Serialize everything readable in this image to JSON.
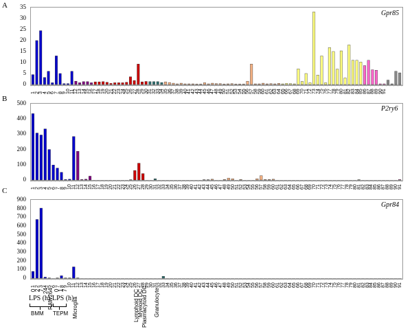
{
  "chart_data": [
    {
      "type": "bar",
      "panel": "A",
      "title": "Gpr85",
      "xlabel": "",
      "ylabel": "",
      "ylim": [
        0,
        35
      ],
      "yticks": [
        0,
        5,
        10,
        15,
        20,
        25,
        30,
        35
      ],
      "grid": false,
      "categories": [
        "1",
        "2",
        "3",
        "4",
        "5",
        "6",
        "7",
        "8",
        "9",
        "10",
        "11",
        "12",
        "13",
        "14",
        "15",
        "16",
        "17",
        "18",
        "19",
        "20",
        "21",
        "22",
        "23",
        "24",
        "25",
        "26",
        "27",
        "28",
        "29",
        "30",
        "31",
        "32",
        "33",
        "34",
        "35",
        "36",
        "37",
        "38",
        "39",
        "40",
        "41",
        "42",
        "43",
        "44",
        "45",
        "46",
        "47",
        "48",
        "49",
        "50",
        "51",
        "52",
        "53",
        "54",
        "55",
        "56",
        "57",
        "58",
        "59",
        "60",
        "61",
        "62",
        "63",
        "64",
        "65",
        "66",
        "67",
        "68",
        "69",
        "70",
        "71",
        "72",
        "73",
        "74",
        "75",
        "76",
        "77",
        "78",
        "79",
        "80",
        "81",
        "82",
        "83",
        "84",
        "85",
        "86",
        "87",
        "88",
        "89",
        "90",
        "91"
      ],
      "values": [
        4.5,
        20,
        24.5,
        3.2,
        6,
        0.8,
        13,
        5,
        0.4,
        0.4,
        6,
        1.5,
        0.8,
        1.3,
        1.3,
        0.8,
        1.2,
        1.2,
        1.3,
        1,
        0.5,
        0.8,
        0.8,
        0.8,
        1,
        3.5,
        1.8,
        9.3,
        1.2,
        1.4,
        1.3,
        1.3,
        1.3,
        0.9,
        1.2,
        0.9,
        0.6,
        0.3,
        0.6,
        0.3,
        0.3,
        0.3,
        0.2,
        0.2,
        0.8,
        0.3,
        0.6,
        0.4,
        0.4,
        0.2,
        0.3,
        0.4,
        0.2,
        0.2,
        0.2,
        1.5,
        9.3,
        0.3,
        0.3,
        0.6,
        0.3,
        0.4,
        0.3,
        0.5,
        0.3,
        0.5,
        0.4,
        0.3,
        7.1,
        1.4,
        5,
        0.8,
        33,
        4.3,
        13,
        0.8,
        16.8,
        15,
        7,
        15.3,
        3,
        18,
        11,
        11,
        10.2,
        8.6,
        11,
        6.7,
        6.5,
        0.3,
        0.3,
        2,
        0.3,
        6,
        5.3
      ]
    },
    {
      "type": "bar",
      "panel": "B",
      "title": "P2ry6",
      "ylim": [
        0,
        500
      ],
      "yticks": [
        0,
        100,
        200,
        300,
        400,
        500
      ],
      "grid": false,
      "categories": [
        "1",
        "2",
        "3",
        "4",
        "5",
        "6",
        "7",
        "8",
        "9",
        "10",
        "11",
        "12",
        "13",
        "14",
        "15",
        "16",
        "17",
        "18",
        "19",
        "20",
        "21",
        "22",
        "23",
        "24",
        "25",
        "26",
        "27",
        "28",
        "29",
        "30",
        "31",
        "32",
        "33",
        "34",
        "35",
        "36",
        "37",
        "38",
        "39",
        "40",
        "41",
        "42",
        "43",
        "44",
        "45",
        "46",
        "47",
        "48",
        "49",
        "50",
        "51",
        "52",
        "53",
        "54",
        "55",
        "56",
        "57",
        "58",
        "59",
        "60",
        "61",
        "62",
        "63",
        "64",
        "65",
        "66",
        "67",
        "68",
        "69",
        "70",
        "71",
        "72",
        "73",
        "74",
        "75",
        "76",
        "77",
        "78",
        "79",
        "80",
        "81",
        "82",
        "83",
        "84",
        "85",
        "86",
        "87",
        "88",
        "89",
        "90",
        "91"
      ],
      "values": [
        435,
        308,
        295,
        335,
        200,
        98,
        78,
        50,
        3,
        5,
        285,
        188,
        3,
        5,
        25,
        0,
        0,
        0,
        0,
        0,
        0,
        0,
        0,
        0,
        2,
        62,
        110,
        42,
        0,
        0,
        8,
        0,
        0,
        0,
        0,
        0,
        0,
        0,
        0,
        0,
        0,
        0,
        2,
        2,
        5,
        0,
        0,
        3,
        12,
        8,
        0,
        3,
        0,
        0,
        0,
        8,
        28,
        3,
        3,
        5,
        0,
        0,
        0,
        0,
        0,
        0,
        0,
        0,
        0,
        0,
        0,
        0,
        0,
        0,
        0,
        0,
        0,
        0,
        0,
        0,
        2,
        0,
        0,
        0,
        0,
        0,
        0,
        0,
        0,
        0,
        3
      ]
    },
    {
      "type": "bar",
      "panel": "C",
      "title": "Gpr84",
      "ylim": [
        0,
        900
      ],
      "yticks": [
        0,
        100,
        200,
        300,
        400,
        500,
        600,
        700,
        800,
        900
      ],
      "grid": false,
      "categories": [
        "1",
        "2",
        "3",
        "4",
        "5",
        "6",
        "7",
        "8",
        "9",
        "10",
        "11",
        "12",
        "13",
        "14",
        "15",
        "16",
        "17",
        "18",
        "19",
        "20",
        "21",
        "22",
        "23",
        "24",
        "25",
        "26",
        "27",
        "28",
        "29",
        "30",
        "31",
        "32",
        "33",
        "34",
        "35",
        "36",
        "37",
        "38",
        "39",
        "40",
        "41",
        "42",
        "43",
        "44",
        "45",
        "46",
        "47",
        "48",
        "49",
        "50",
        "51",
        "52",
        "53",
        "54",
        "55",
        "56",
        "57",
        "58",
        "59",
        "60",
        "61",
        "62",
        "63",
        "64",
        "65",
        "66",
        "67",
        "68",
        "69",
        "70",
        "71",
        "72",
        "73",
        "74",
        "75",
        "76",
        "77",
        "78",
        "79",
        "80",
        "81",
        "82",
        "83",
        "84",
        "85",
        "86",
        "87",
        "88",
        "89",
        "90",
        "91"
      ],
      "values": [
        78,
        675,
        805,
        12,
        3,
        0,
        3,
        28,
        3,
        3,
        130,
        3,
        0,
        0,
        0,
        0,
        0,
        0,
        0,
        0,
        0,
        0,
        0,
        0,
        0,
        0,
        0,
        0,
        0,
        0,
        0,
        0,
        22,
        0,
        0,
        0,
        0,
        0,
        0,
        0,
        0,
        0,
        0,
        0,
        0,
        0,
        0,
        0,
        0,
        0,
        0,
        0,
        0,
        0,
        0,
        0,
        0,
        0,
        0,
        0,
        0,
        0,
        0,
        0,
        0,
        0,
        0,
        0,
        0,
        0,
        0,
        0,
        0,
        0,
        0,
        0,
        0,
        0,
        0,
        0,
        0,
        0,
        0,
        0,
        0,
        0,
        0,
        0,
        0,
        0,
        0
      ]
    }
  ],
  "bar_colors": {
    "ranges": [
      {
        "from": 1,
        "to": 11,
        "color": "#0000cc"
      },
      {
        "from": 12,
        "to": 16,
        "color": "#800080"
      },
      {
        "from": 17,
        "to": 30,
        "color": "#cc0000"
      },
      {
        "from": 31,
        "to": 34,
        "color": "#2f6f6f"
      },
      {
        "from": 35,
        "to": 64,
        "color": "#f4b183"
      },
      {
        "from": 65,
        "to": 85,
        "color": "#ffff80"
      },
      {
        "from": 86,
        "to": 91,
        "color": "#ff66cc"
      }
    ]
  },
  "panels": {
    "A": {
      "letter": "A",
      "gene": "Gpr85"
    },
    "B": {
      "letter": "B",
      "gene": "P2ry6"
    },
    "C": {
      "letter": "C",
      "gene": "Gpr84"
    }
  },
  "annotations": {
    "bmm_timepoints": [
      "0",
      "2",
      "7",
      "24"
    ],
    "bmm_lps": "LPS (h)",
    "bmm": "BMM",
    "raw": "RAW264",
    "tepm_timepoints": [
      "0",
      "1",
      "7"
    ],
    "tepm_lps": "LPS (h)",
    "tepm": "TEPM",
    "microglia": "Microglia",
    "lymphoid_dc": "Lymphoid DC",
    "myeloid_dc": "Myeloid DC",
    "plasmacytoid_dc": "Plasmacytoid DC",
    "granulocyte": "Granulocyte"
  }
}
